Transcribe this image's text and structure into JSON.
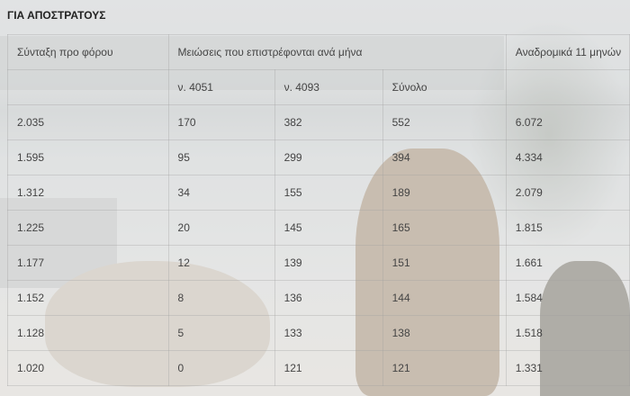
{
  "title": "ΓΙΑ ΑΠΟΣΤΡΑΤΟΥΣ",
  "header": {
    "col1": "Σύνταξη προ φόρου",
    "group": "Μειώσεις που επιστρέφονται ανά μήνα",
    "col5": "Αναδρομικά 11 μηνών",
    "sub": [
      "ν. 4051",
      "ν. 4093",
      "Σύνολο"
    ]
  },
  "rows": [
    [
      "2.035",
      "170",
      "382",
      "552",
      "6.072"
    ],
    [
      "1.595",
      "95",
      "299",
      "394",
      "4.334"
    ],
    [
      "1.312",
      "34",
      "155",
      "189",
      "2.079"
    ],
    [
      "1.225",
      "20",
      "145",
      "165",
      "1.815"
    ],
    [
      "1.177",
      "12",
      "139",
      "151",
      "1.661"
    ],
    [
      "1.152",
      "8",
      "136",
      "144",
      "1.584"
    ],
    [
      "1.128",
      "5",
      "133",
      "138",
      "1.518"
    ],
    [
      "1.020",
      "0",
      "121",
      "121",
      "1.331"
    ]
  ]
}
